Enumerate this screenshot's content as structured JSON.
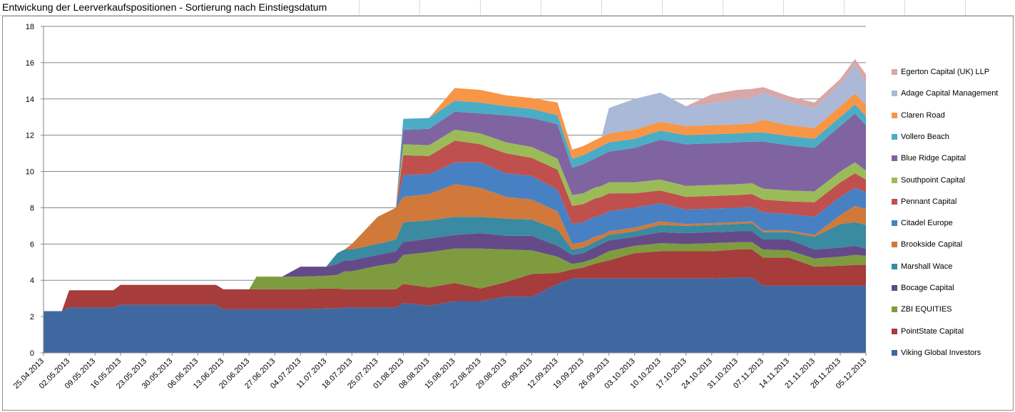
{
  "chart_title": "Entwickung der Leerverkaufspositionen - Sortierung nach Einstiegsdatum",
  "chart_data": {
    "type": "area",
    "stacked": true,
    "grid": "horizontal",
    "legend_position": "right",
    "ylim": [
      0,
      18
    ],
    "yticks": [
      0,
      2,
      4,
      6,
      8,
      10,
      12,
      14,
      16,
      18
    ],
    "xticks": [
      "25.04.2013",
      "02.05.2013",
      "09.05.2013",
      "16.05.2013",
      "23.05.2013",
      "30.05.2013",
      "06.06.2013",
      "13.06.2013",
      "20.06.2013",
      "27.06.2013",
      "04.07.2013",
      "11.07.2013",
      "18.07.2013",
      "25.07.2013",
      "01.08.2013",
      "08.08.2013",
      "15.08.2013",
      "22.08.2013",
      "29.08.2013",
      "05.09.2013",
      "12.09.2013",
      "19.09.2013",
      "26.09.2013",
      "03.10.2013",
      "10.10.2013",
      "17.10.2013",
      "24.10.2013",
      "31.10.2013",
      "07.11.2013",
      "14.11.2013",
      "21.11.2013",
      "28.11.2013",
      "05.12.2013"
    ],
    "x": [
      "25.04.2013",
      "30.04.2013",
      "02.05.2013",
      "09.05.2013",
      "14.05.2013",
      "16.05.2013",
      "23.05.2013",
      "30.05.2013",
      "06.06.2013",
      "11.06.2013",
      "13.06.2013",
      "20.06.2013",
      "22.06.2013",
      "27.06.2013",
      "29.06.2013",
      "04.07.2013",
      "11.07.2013",
      "14.07.2013",
      "16.07.2013",
      "18.07.2013",
      "25.07.2013",
      "30.07.2013",
      "01.08.2013",
      "08.08.2013",
      "15.08.2013",
      "22.08.2013",
      "29.08.2013",
      "05.09.2013",
      "12.09.2013",
      "16.09.2013",
      "19.09.2013",
      "22.09.2013",
      "24.09.2013",
      "26.09.2013",
      "03.10.2013",
      "10.10.2013",
      "17.10.2013",
      "24.10.2013",
      "31.10.2013",
      "04.11.2013",
      "07.11.2013",
      "14.11.2013",
      "21.11.2013",
      "28.11.2013",
      "02.12.2013",
      "05.12.2013"
    ],
    "series": [
      {
        "name": "Viking Global Investors",
        "color": "#4068a0",
        "values": [
          2.3,
          2.3,
          2.5,
          2.5,
          2.5,
          2.65,
          2.65,
          2.65,
          2.65,
          2.65,
          2.4,
          2.4,
          2.4,
          2.4,
          2.4,
          2.4,
          2.45,
          2.45,
          2.5,
          2.5,
          2.5,
          2.5,
          2.75,
          2.6,
          2.85,
          2.85,
          3.1,
          3.1,
          3.8,
          4.1,
          4.1,
          4.1,
          4.1,
          4.1,
          4.1,
          4.1,
          4.1,
          4.1,
          4.15,
          4.15,
          3.7,
          3.7,
          3.7,
          3.7,
          3.7,
          3.7
        ]
      },
      {
        "name": "PointState Capital",
        "color": "#a63c3b",
        "values": [
          0,
          0,
          0.95,
          0.95,
          0.95,
          1.1,
          1.1,
          1.1,
          1.1,
          1.1,
          1.1,
          1.1,
          1.1,
          1.1,
          1.1,
          1.1,
          1.1,
          1.1,
          1.0,
          1.0,
          1.0,
          1.0,
          1.05,
          1.0,
          1.0,
          0.7,
          0.8,
          1.25,
          0.6,
          0.5,
          0.6,
          0.8,
          0.9,
          1.0,
          1.4,
          1.5,
          1.5,
          1.5,
          1.55,
          1.55,
          1.55,
          1.55,
          1.05,
          1.1,
          1.15,
          1.15
        ]
      },
      {
        "name": "ZBI EQUITIES",
        "color": "#7e9c3f",
        "values": [
          0,
          0,
          0,
          0,
          0,
          0,
          0,
          0,
          0,
          0,
          0,
          0,
          0.7,
          0.7,
          0.7,
          0.7,
          0.7,
          0.75,
          1.0,
          1.0,
          1.3,
          1.45,
          1.6,
          1.95,
          1.9,
          2.2,
          1.8,
          1.3,
          0.9,
          0.3,
          0.3,
          0.3,
          0.4,
          0.5,
          0.4,
          0.45,
          0.4,
          0.45,
          0.4,
          0.4,
          0.45,
          0.4,
          0.45,
          0.5,
          0.55,
          0.5
        ]
      },
      {
        "name": "Bocage Capital",
        "color": "#654a8a",
        "values": [
          0,
          0,
          0,
          0,
          0,
          0,
          0,
          0,
          0,
          0,
          0,
          0,
          0,
          0,
          0,
          0.55,
          0.5,
          0.6,
          0.6,
          0.6,
          0.6,
          0.65,
          0.7,
          0.75,
          0.75,
          0.85,
          0.75,
          0.8,
          0.6,
          0.5,
          0.5,
          0.6,
          0.6,
          0.6,
          0.5,
          0.6,
          0.6,
          0.6,
          0.6,
          0.6,
          0.55,
          0.6,
          0.5,
          0.5,
          0.5,
          0.4
        ]
      },
      {
        "name": "Marshall Wace",
        "color": "#3a8aa1",
        "values": [
          0,
          0,
          0,
          0,
          0,
          0,
          0,
          0,
          0,
          0,
          0,
          0,
          0,
          0,
          0,
          0,
          0,
          0.6,
          0.6,
          0.6,
          0.6,
          0.65,
          1.1,
          1.0,
          1.0,
          0.9,
          0.95,
          0.9,
          0.9,
          0.3,
          0.3,
          0.3,
          0.3,
          0.3,
          0.3,
          0.4,
          0.4,
          0.4,
          0.4,
          0.45,
          0.4,
          0.4,
          0.7,
          1.3,
          1.3,
          1.3
        ]
      },
      {
        "name": "Brookside Capital",
        "color": "#d0793a",
        "values": [
          0,
          0,
          0,
          0,
          0,
          0,
          0,
          0,
          0,
          0,
          0,
          0,
          0,
          0,
          0,
          0,
          0,
          0,
          0,
          0.3,
          1.5,
          1.75,
          1.4,
          1.45,
          1.8,
          1.6,
          1.2,
          1.1,
          1.0,
          0.3,
          0.3,
          0.3,
          0.2,
          0.2,
          0.2,
          0.2,
          0.1,
          0.1,
          0.1,
          0.1,
          0.1,
          0.1,
          0.1,
          0.5,
          0.9,
          0.9
        ]
      },
      {
        "name": "Citadel Europe",
        "color": "#4781c4",
        "values": [
          0,
          0,
          0,
          0,
          0,
          0,
          0,
          0,
          0,
          0,
          0,
          0,
          0,
          0,
          0,
          0,
          0,
          0,
          0,
          0,
          0,
          0,
          1.2,
          1.1,
          1.2,
          1.4,
          1.3,
          1.3,
          1.2,
          1.1,
          1.1,
          1.1,
          1.1,
          1.1,
          1.1,
          1.0,
          0.8,
          0.8,
          0.8,
          0.8,
          1.0,
          0.9,
          1.0,
          1.0,
          1.0,
          0.9
        ]
      },
      {
        "name": "Pennant Capital",
        "color": "#c0504d",
        "values": [
          0,
          0,
          0,
          0,
          0,
          0,
          0,
          0,
          0,
          0,
          0,
          0,
          0,
          0,
          0,
          0,
          0,
          0,
          0,
          0,
          0,
          0,
          1.1,
          1.0,
          1.2,
          1.0,
          1.1,
          1.0,
          1.1,
          1.0,
          1.0,
          1.0,
          1.0,
          1.0,
          0.8,
          0.7,
          0.7,
          0.7,
          0.7,
          0.7,
          0.7,
          0.7,
          0.8,
          0.8,
          0.8,
          0.7
        ]
      },
      {
        "name": "Southpoint Capital",
        "color": "#9bbb59",
        "values": [
          0,
          0,
          0,
          0,
          0,
          0,
          0,
          0,
          0,
          0,
          0,
          0,
          0,
          0,
          0,
          0,
          0,
          0,
          0,
          0,
          0,
          0,
          0.6,
          0.6,
          0.6,
          0.6,
          0.6,
          0.6,
          0.6,
          0.6,
          0.6,
          0.6,
          0.6,
          0.6,
          0.6,
          0.6,
          0.6,
          0.6,
          0.6,
          0.6,
          0.6,
          0.6,
          0.6,
          0.6,
          0.6,
          0.5
        ]
      },
      {
        "name": "Blue Ridge Capital",
        "color": "#8064a2",
        "values": [
          0,
          0,
          0,
          0,
          0,
          0,
          0,
          0,
          0,
          0,
          0,
          0,
          0,
          0,
          0,
          0,
          0,
          0,
          0,
          0,
          0,
          0,
          0.8,
          0.9,
          1.0,
          1.1,
          1.5,
          1.6,
          1.9,
          1.5,
          1.6,
          1.6,
          1.7,
          1.7,
          1.9,
          2.2,
          2.3,
          2.3,
          2.3,
          2.3,
          2.6,
          2.5,
          2.4,
          2.5,
          2.7,
          2.5
        ]
      },
      {
        "name": "Vollero Beach",
        "color": "#4bacc6",
        "values": [
          0,
          0,
          0,
          0,
          0,
          0,
          0,
          0,
          0,
          0,
          0,
          0,
          0,
          0,
          0,
          0,
          0,
          0,
          0,
          0,
          0,
          0,
          0.6,
          0.6,
          0.6,
          0.6,
          0.5,
          0.5,
          0.5,
          0.5,
          0.5,
          0.5,
          0.5,
          0.5,
          0.5,
          0.5,
          0.5,
          0.5,
          0.5,
          0.5,
          0.5,
          0.5,
          0.5,
          0.5,
          0.5,
          0.5
        ]
      },
      {
        "name": "Claren Road",
        "color": "#f79646",
        "values": [
          0,
          0,
          0,
          0,
          0,
          0,
          0,
          0,
          0,
          0,
          0,
          0,
          0,
          0,
          0,
          0,
          0,
          0,
          0,
          0,
          0,
          0,
          0,
          0,
          0.7,
          0.7,
          0.6,
          0.6,
          0.7,
          0.5,
          0.5,
          0.5,
          0.5,
          0.5,
          0.5,
          0.5,
          0.5,
          0.5,
          0.5,
          0.5,
          0.7,
          0.6,
          0.6,
          0.6,
          0.6,
          0.6
        ]
      },
      {
        "name": "Adage Capital  Management",
        "color": "#aab9d8",
        "values": [
          0,
          0,
          0,
          0,
          0,
          0,
          0,
          0,
          0,
          0,
          0,
          0,
          0,
          0,
          0,
          0,
          0,
          0,
          0,
          0,
          0,
          0,
          0,
          0,
          0,
          0,
          0,
          0,
          0,
          0,
          0,
          0,
          0,
          1.4,
          1.7,
          1.6,
          1.1,
          1.2,
          1.4,
          1.4,
          1.5,
          1.3,
          1.1,
          1.2,
          1.6,
          1.2
        ]
      },
      {
        "name": "Egerton Capital (UK) LLP",
        "color": "#d9a7a6",
        "values": [
          0,
          0,
          0,
          0,
          0,
          0,
          0,
          0,
          0,
          0,
          0,
          0,
          0,
          0,
          0,
          0,
          0,
          0,
          0,
          0,
          0,
          0,
          0,
          0,
          0,
          0,
          0,
          0,
          0,
          0,
          0,
          0,
          0,
          0,
          0,
          0,
          0,
          0.5,
          0.5,
          0.5,
          0.3,
          0.3,
          0.3,
          0.3,
          0.3,
          0.5
        ]
      }
    ]
  }
}
